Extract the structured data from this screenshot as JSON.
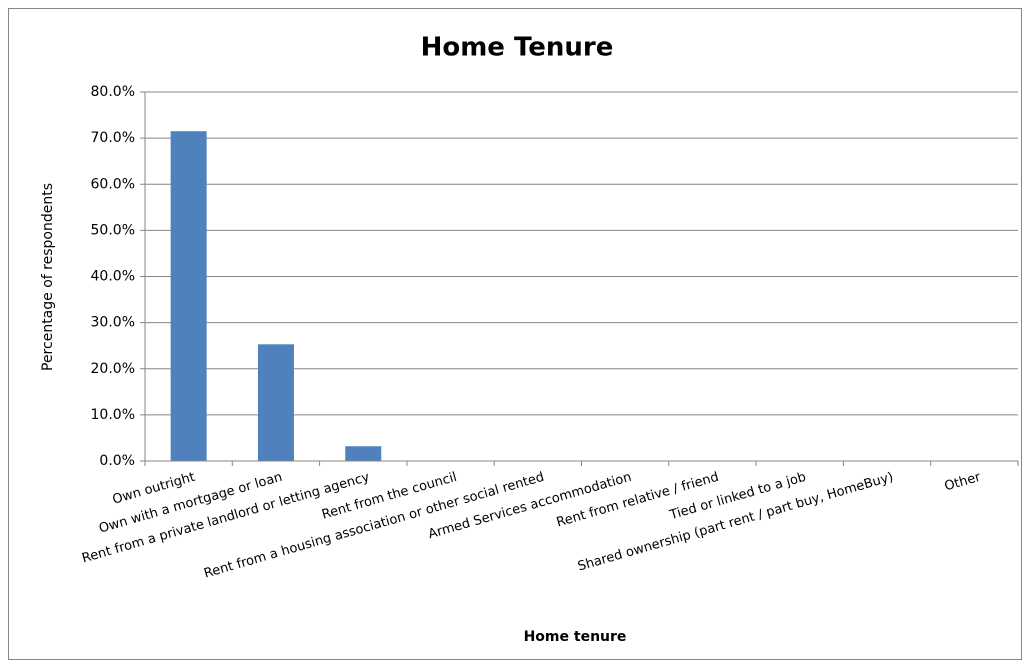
{
  "chart_data": {
    "type": "bar",
    "title": "Home Tenure",
    "x_label": "Home tenure",
    "y_label": "Percentage of respondents",
    "categories": [
      "Own outright",
      "Own with a mortgage or loan",
      "Rent from a private landlord or letting agency",
      "Rent from the council",
      "Rent from a housing association or other social rented",
      "Armed Services accommodation",
      "Rent from relative / friend",
      "Tied or linked to a job",
      "Shared ownership (part rent / part buy, HomeBuy)",
      "Other"
    ],
    "values": [
      71.5,
      25.3,
      3.2,
      0,
      0,
      0,
      0,
      0,
      0,
      0
    ],
    "color": "#4f81bd",
    "ylim": [
      0,
      80
    ],
    "yticks": [
      {
        "value": 0,
        "label": "0.0%"
      },
      {
        "value": 10,
        "label": "10.0%"
      },
      {
        "value": 20,
        "label": "20.0%"
      },
      {
        "value": 30,
        "label": "30.0%"
      },
      {
        "value": 40,
        "label": "40.0%"
      },
      {
        "value": 50,
        "label": "50.0%"
      },
      {
        "value": 60,
        "label": "60.0%"
      },
      {
        "value": 70,
        "label": "70.0%"
      },
      {
        "value": 80,
        "label": "80.0%"
      }
    ],
    "grid": true
  }
}
